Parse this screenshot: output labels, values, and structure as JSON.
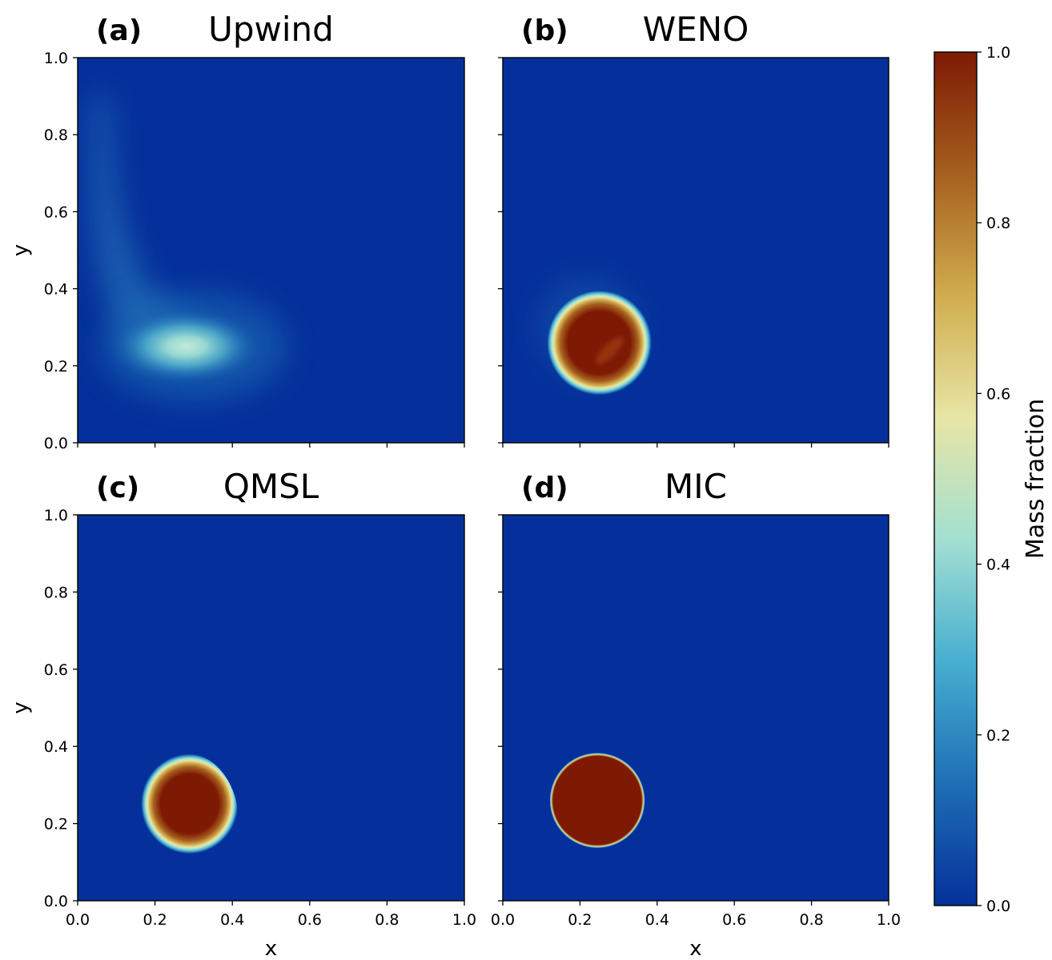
{
  "chart_data": [
    {
      "type": "heatmap",
      "panel_letter": "(a)",
      "title": "Upwind",
      "xlabel": "",
      "ylabel": "y",
      "xlim": [
        0.0,
        1.0
      ],
      "ylim": [
        0.0,
        1.0
      ],
      "x_ticks": [],
      "y_ticks": [
        "0.0",
        "0.2",
        "0.4",
        "0.6",
        "0.8",
        "1.0"
      ],
      "features": [
        {
          "shape": "smeared-blob",
          "center": [
            0.28,
            0.25
          ],
          "peak": 0.45,
          "tail_to": [
            0.06,
            0.9
          ]
        }
      ]
    },
    {
      "type": "heatmap",
      "panel_letter": "(b)",
      "title": "WENO",
      "xlabel": "",
      "ylabel": "",
      "xlim": [
        0.0,
        1.0
      ],
      "ylim": [
        0.0,
        1.0
      ],
      "x_ticks": [],
      "y_ticks": [],
      "features": [
        {
          "shape": "disc",
          "center": [
            0.25,
            0.26
          ],
          "radius": 0.115,
          "peak": 1.0,
          "edge": "smooth"
        }
      ]
    },
    {
      "type": "heatmap",
      "panel_letter": "(c)",
      "title": "QMSL",
      "xlabel": "",
      "ylabel": "y",
      "xlim": [
        0.0,
        1.0
      ],
      "ylim": [
        0.0,
        1.0
      ],
      "x_ticks": [
        "0.0",
        "0.2",
        "0.4",
        "0.6",
        "0.8",
        "1.0"
      ],
      "y_ticks": [
        "0.0",
        "0.2",
        "0.4",
        "0.6",
        "0.8",
        "1.0"
      ],
      "features": [
        {
          "shape": "rounded-blob",
          "center": [
            0.28,
            0.25
          ],
          "radius": 0.11,
          "peak": 1.0,
          "edge": "smooth"
        }
      ]
    },
    {
      "type": "heatmap",
      "panel_letter": "(d)",
      "title": "MIC",
      "xlabel": "x",
      "ylabel": "",
      "xlim": [
        0.0,
        1.0
      ],
      "ylim": [
        0.0,
        1.0
      ],
      "x_ticks": [
        "0.0",
        "0.2",
        "0.4",
        "0.6",
        "0.8",
        "1.0"
      ],
      "y_ticks": [],
      "features": [
        {
          "shape": "disc",
          "center": [
            0.245,
            0.26
          ],
          "radius": 0.12,
          "peak": 1.0,
          "edge": "sharp"
        }
      ]
    }
  ],
  "shared_xlabel_left": "x",
  "colorbar": {
    "label": "Mass fraction",
    "range": [
      0.0,
      1.0
    ],
    "ticks": [
      "0.0",
      "0.2",
      "0.4",
      "0.6",
      "0.8",
      "1.0"
    ],
    "colormap": [
      "#05309b",
      "#1e6fb5",
      "#47aed0",
      "#a3e0d2",
      "#e8e5a6",
      "#d1ad4e",
      "#a6601f",
      "#7e1a04"
    ]
  }
}
